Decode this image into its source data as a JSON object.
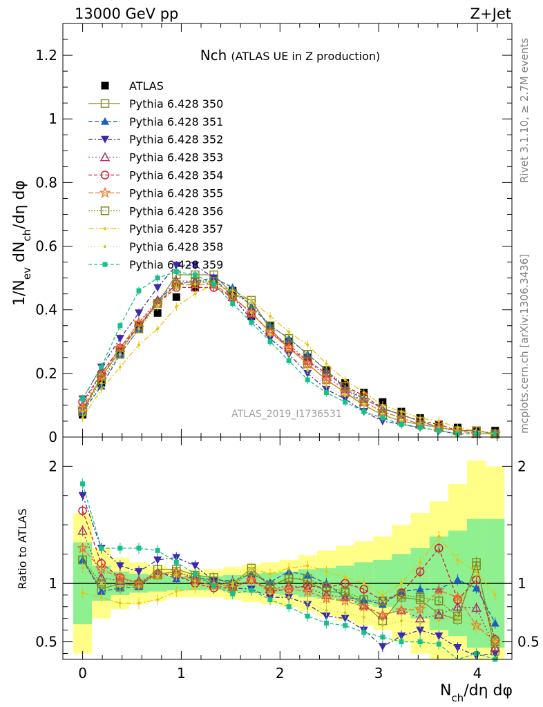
{
  "header": {
    "energy": "13000 GeV pp",
    "process": "Z+Jet",
    "title_main": "Nch",
    "title_sub": "(ATLAS UE in Z production)",
    "analysis_id": "ATLAS_2019_I1736531",
    "rivet": "Rivet 3.1.10, ≥ 2.7M events",
    "mcplots": "mcplots.cern.ch [arXiv:1306.3436]"
  },
  "chart_data": [
    {
      "type": "scatter",
      "panel": "main",
      "ylabel": "1/Nev dNch/dη dφ",
      "xlim": [
        -0.2,
        4.35
      ],
      "ylim": [
        0,
        1.3
      ],
      "yticks": [
        0,
        0.2,
        0.4,
        0.6,
        0.8,
        1.0,
        1.2
      ],
      "ytick_labels": [
        "0",
        "0.2",
        "0.4",
        "0.6",
        "0.8",
        "1",
        "1.2"
      ],
      "x": [
        0.0,
        0.19,
        0.38,
        0.57,
        0.76,
        0.95,
        1.14,
        1.33,
        1.52,
        1.71,
        1.9,
        2.09,
        2.28,
        2.47,
        2.66,
        2.85,
        3.04,
        3.23,
        3.42,
        3.61,
        3.8,
        3.99,
        4.18
      ],
      "series": [
        {
          "name": "ATLAS",
          "color": "#000000",
          "values": [
            0.07,
            0.17,
            0.27,
            0.35,
            0.39,
            0.44,
            0.47,
            0.49,
            0.46,
            0.38,
            0.35,
            0.3,
            0.25,
            0.21,
            0.17,
            0.14,
            0.11,
            0.08,
            0.06,
            0.04,
            0.03,
            0.02,
            0.02
          ]
        },
        {
          "name": "Pythia 6.428 350",
          "color": "#8c8c28",
          "values": [
            0.08,
            0.19,
            0.27,
            0.35,
            0.42,
            0.51,
            0.51,
            0.51,
            0.45,
            0.43,
            0.34,
            0.28,
            0.23,
            0.18,
            0.14,
            0.1,
            0.07,
            0.05,
            0.04,
            0.03,
            0.02,
            0.02,
            0.01
          ]
        },
        {
          "name": "Pythia 6.428 351",
          "color": "#1c5fc4",
          "values": [
            0.08,
            0.16,
            0.26,
            0.34,
            0.43,
            0.48,
            0.49,
            0.5,
            0.47,
            0.41,
            0.35,
            0.31,
            0.26,
            0.21,
            0.15,
            0.12,
            0.09,
            0.07,
            0.05,
            0.03,
            0.02,
            0.02,
            0.01
          ]
        },
        {
          "name": "Pythia 6.428 352",
          "color": "#3a2ab0",
          "values": [
            0.12,
            0.22,
            0.31,
            0.39,
            0.47,
            0.54,
            0.54,
            0.5,
            0.44,
            0.37,
            0.31,
            0.26,
            0.2,
            0.15,
            0.12,
            0.08,
            0.05,
            0.04,
            0.03,
            0.02,
            0.01,
            0.01,
            0.01
          ]
        },
        {
          "name": "Pythia 6.428 353",
          "color": "#a8326e",
          "values": [
            0.1,
            0.2,
            0.28,
            0.36,
            0.43,
            0.49,
            0.49,
            0.48,
            0.44,
            0.39,
            0.33,
            0.29,
            0.24,
            0.19,
            0.15,
            0.11,
            0.08,
            0.06,
            0.04,
            0.03,
            0.02,
            0.01,
            0.01
          ]
        },
        {
          "name": "Pythia 6.428 354",
          "color": "#d7192c",
          "values": [
            0.11,
            0.2,
            0.28,
            0.35,
            0.42,
            0.47,
            0.47,
            0.47,
            0.44,
            0.39,
            0.33,
            0.28,
            0.24,
            0.2,
            0.16,
            0.13,
            0.09,
            0.07,
            0.05,
            0.04,
            0.02,
            0.02,
            0.01
          ]
        },
        {
          "name": "Pythia 6.428 355",
          "color": "#ee7428",
          "values": [
            0.09,
            0.19,
            0.28,
            0.36,
            0.42,
            0.48,
            0.48,
            0.48,
            0.44,
            0.39,
            0.33,
            0.28,
            0.23,
            0.18,
            0.14,
            0.11,
            0.08,
            0.06,
            0.04,
            0.03,
            0.02,
            0.01,
            0.01
          ]
        },
        {
          "name": "Pythia 6.428 356",
          "color": "#7c8a14",
          "values": [
            0.08,
            0.18,
            0.26,
            0.34,
            0.42,
            0.48,
            0.49,
            0.49,
            0.45,
            0.42,
            0.35,
            0.31,
            0.26,
            0.21,
            0.16,
            0.12,
            0.09,
            0.07,
            0.05,
            0.03,
            0.02,
            0.02,
            0.01
          ]
        },
        {
          "name": "Pythia 6.428 357",
          "color": "#e6c40a",
          "values": [
            0.06,
            0.15,
            0.22,
            0.29,
            0.34,
            0.41,
            0.45,
            0.48,
            0.46,
            0.43,
            0.38,
            0.33,
            0.29,
            0.23,
            0.18,
            0.14,
            0.1,
            0.08,
            0.06,
            0.05,
            0.03,
            0.02,
            0.01
          ]
        },
        {
          "name": "Pythia 6.428 358",
          "color": "#c8c832",
          "values": [
            0.08,
            0.17,
            0.26,
            0.34,
            0.41,
            0.47,
            0.48,
            0.49,
            0.45,
            0.39,
            0.32,
            0.26,
            0.21,
            0.16,
            0.13,
            0.1,
            0.07,
            0.05,
            0.04,
            0.03,
            0.02,
            0.01,
            0.01
          ]
        },
        {
          "name": "Pythia 6.428 359",
          "color": "#16c08a",
          "values": [
            0.12,
            0.22,
            0.35,
            0.46,
            0.5,
            0.52,
            0.51,
            0.48,
            0.42,
            0.36,
            0.3,
            0.24,
            0.18,
            0.14,
            0.11,
            0.08,
            0.06,
            0.04,
            0.03,
            0.02,
            0.01,
            0.01,
            0.01
          ]
        }
      ]
    },
    {
      "type": "line",
      "panel": "ratio",
      "ylabel": "Ratio to ATLAS",
      "xlabel": "Nch/dη dφ",
      "xlim": [
        -0.2,
        4.35
      ],
      "ylim": [
        0.35,
        2.25
      ],
      "yticks": [
        0.5,
        1,
        2
      ],
      "ytick_labels": [
        "0.5",
        "1",
        "2"
      ],
      "xticks": [
        0,
        1,
        2,
        3,
        4
      ],
      "xtick_labels": [
        "0",
        "1",
        "2",
        "3",
        "4"
      ],
      "x": [
        0.0,
        0.19,
        0.38,
        0.57,
        0.76,
        0.95,
        1.14,
        1.33,
        1.52,
        1.71,
        1.9,
        2.09,
        2.28,
        2.47,
        2.66,
        2.85,
        3.04,
        3.23,
        3.42,
        3.61,
        3.8,
        3.99,
        4.18
      ],
      "bands": {
        "stat_green": [
          1.35,
          1.15,
          1.1,
          1.08,
          1.07,
          1.06,
          1.06,
          1.06,
          1.07,
          1.08,
          1.09,
          1.1,
          1.12,
          1.13,
          1.15,
          1.18,
          1.2,
          1.25,
          1.3,
          1.4,
          1.45,
          1.55,
          1.55
        ],
        "total_yellow": [
          1.6,
          1.3,
          1.22,
          1.18,
          1.15,
          1.12,
          1.12,
          1.12,
          1.14,
          1.16,
          1.18,
          1.2,
          1.24,
          1.28,
          1.32,
          1.36,
          1.4,
          1.5,
          1.6,
          1.7,
          1.85,
          2.05,
          2.0
        ]
      },
      "series": [
        {
          "name": "Pythia 6.428 350",
          "color": "#8c8c28",
          "values": [
            1.2,
            0.95,
            1.0,
            0.98,
            1.12,
            1.12,
            1.07,
            1.05,
            0.99,
            1.13,
            0.97,
            1.05,
            1.02,
            0.93,
            0.92,
            0.82,
            0.68,
            0.88,
            0.86,
            0.74,
            0.69,
            1.18,
            0.42
          ]
        },
        {
          "name": "Pythia 6.428 351",
          "color": "#1c5fc4",
          "values": [
            1.2,
            0.93,
            0.96,
            0.97,
            1.1,
            1.04,
            1.05,
            1.03,
            1.02,
            1.08,
            1.01,
            1.1,
            1.07,
            1.0,
            0.88,
            0.86,
            0.82,
            0.93,
            0.95,
            0.95,
            1.03,
            0.96,
            0.66
          ]
        },
        {
          "name": "Pythia 6.428 352",
          "color": "#3a2ab0",
          "values": [
            1.75,
            1.3,
            1.15,
            1.1,
            1.2,
            1.22,
            1.15,
            1.02,
            0.96,
            0.95,
            0.88,
            0.88,
            0.82,
            0.72,
            0.7,
            0.6,
            0.46,
            0.55,
            0.6,
            0.55,
            0.45,
            0.38,
            0.4
          ]
        },
        {
          "name": "Pythia 6.428 353",
          "color": "#a8326e",
          "values": [
            1.45,
            1.05,
            1.02,
            1.02,
            1.08,
            1.1,
            1.04,
            1.0,
            0.97,
            1.03,
            0.95,
            0.98,
            0.96,
            0.9,
            0.88,
            0.81,
            0.73,
            0.77,
            0.7,
            0.73,
            0.8,
            0.79,
            0.45
          ]
        },
        {
          "name": "Pythia 6.428 354",
          "color": "#d7192c",
          "values": [
            1.62,
            1.17,
            1.05,
            1.0,
            1.08,
            1.07,
            1.0,
            0.96,
            0.96,
            1.03,
            0.93,
            0.95,
            0.98,
            0.96,
            1.0,
            0.95,
            0.85,
            0.92,
            1.1,
            1.3,
            0.86,
            1.03,
            0.52
          ]
        },
        {
          "name": "Pythia 6.428 355",
          "color": "#ee7428",
          "values": [
            1.3,
            1.12,
            1.05,
            1.0,
            1.08,
            1.1,
            1.02,
            0.98,
            0.96,
            1.03,
            0.95,
            0.95,
            0.93,
            0.87,
            0.85,
            0.8,
            0.73,
            0.77,
            0.78,
            0.94,
            0.88,
            0.64,
            0.5
          ]
        },
        {
          "name": "Pythia 6.428 356",
          "color": "#7c8a14",
          "values": [
            1.2,
            1.0,
            0.97,
            0.99,
            1.07,
            1.1,
            1.05,
            1.02,
            0.98,
            1.1,
            0.98,
            1.04,
            1.04,
            0.97,
            0.93,
            0.86,
            0.85,
            0.9,
            0.88,
            0.85,
            0.72,
            1.15,
            0.5
          ]
        },
        {
          "name": "Pythia 6.428 357",
          "color": "#e6c40a",
          "values": [
            0.92,
            0.88,
            0.83,
            0.83,
            0.86,
            0.93,
            0.96,
            0.98,
            1.0,
            1.13,
            1.08,
            1.13,
            1.15,
            1.1,
            1.05,
            1.0,
            0.9,
            1.0,
            1.18,
            1.4,
            1.2,
            1.1,
            0.9
          ]
        },
        {
          "name": "Pythia 6.428 358",
          "color": "#c8c832",
          "values": [
            1.13,
            1.0,
            0.97,
            0.97,
            1.05,
            1.07,
            1.02,
            1.0,
            0.98,
            1.02,
            0.91,
            0.88,
            0.84,
            0.77,
            0.75,
            0.71,
            0.64,
            0.68,
            0.66,
            0.68,
            0.7,
            0.62,
            0.5
          ]
        },
        {
          "name": "Pythia 6.428 359",
          "color": "#16c08a",
          "values": [
            1.85,
            1.3,
            1.3,
            1.3,
            1.28,
            1.18,
            1.08,
            0.98,
            0.91,
            0.94,
            0.86,
            0.8,
            0.72,
            0.66,
            0.64,
            0.58,
            0.54,
            0.5,
            0.5,
            0.48,
            0.33,
            0.4,
            0.35
          ]
        }
      ]
    }
  ]
}
